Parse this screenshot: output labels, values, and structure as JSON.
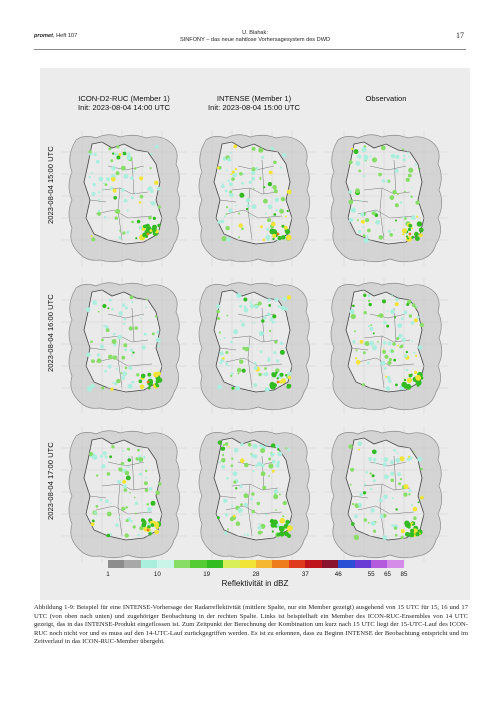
{
  "header": {
    "journal_brand": "promet",
    "journal_issue": ", Heft 107",
    "author": "U. Blahak:",
    "title": "SINFONY – das neue nahtlose Vorhersagesystem des DWD",
    "page_number": "17"
  },
  "figure": {
    "columns": [
      {
        "title": "ICON-D2-RUC (Member 1)",
        "subtitle": "Init: 2023-08-04 14:00 UTC"
      },
      {
        "title": "INTENSE (Member 1)",
        "subtitle": "Init: 2023-08-04 15:00 UTC"
      },
      {
        "title": "Observation",
        "subtitle": ""
      }
    ],
    "rows": [
      {
        "label": "2023-08-04 15:00 UTC"
      },
      {
        "label": "2023-08-04 16:00 UTC"
      },
      {
        "label": "2023-08-04 17:00 UTC"
      }
    ],
    "colorbar": {
      "label": "Reflektivität in dBZ",
      "ticks": [
        "1",
        "10",
        "19",
        "28",
        "37",
        "46",
        "55",
        "65",
        "85"
      ],
      "colors": [
        "#8c8c8c",
        "#a8a8a8",
        "#aaeedd",
        "#c8f5e8",
        "#88dd66",
        "#55cc33",
        "#33bb22",
        "#d9ef5a",
        "#f2e436",
        "#f5b731",
        "#ee7c1c",
        "#e03a1e",
        "#c0141c",
        "#8a1430",
        "#2a4fd4",
        "#6a3cd6",
        "#b45adc",
        "#d48ce8"
      ],
      "colormap_levels": [
        1,
        4,
        7,
        10,
        13,
        16,
        19,
        22,
        25,
        28,
        31,
        34,
        37,
        41,
        46,
        51,
        55,
        65,
        85
      ]
    },
    "caption": "Abbildung 1-9: Beispiel für eine INTENSE-Vorhersage der Radarreflektivität (mittlere Spalte, nur ein Member gezeigt) ausgehend von 15 UTC für 15, 16 und 17 UTC (von oben nach unten) und zugehöriger Beobachtung in der rechten Spalte. Links ist beispielhaft ein Member des ICON-RUC-Ensembles von 14 UTC gezeigt, das in das INTENSE-Produkt eingeflossen ist. Zum Zeitpunkt der Berechnung der Kombination um kurz nach 15 UTC liegt der 15-UTC-Lauf des ICON-RUC noch nicht vor und es muss auf den 14-UTC-Lauf zurückgegriffen werden. Es ist zu erkennen, dass zu Beginn INTENSE der Beobachtung entspricht und im Zeitverlauf in das ICON-RUC-Member übergeht."
  }
}
